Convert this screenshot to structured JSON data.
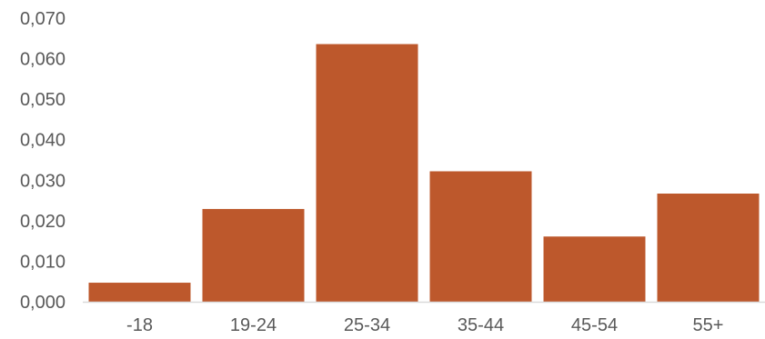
{
  "chart_data": {
    "type": "bar",
    "title": "",
    "xlabel": "",
    "ylabel": "",
    "categories": [
      "-18",
      "19-24",
      "25-34",
      "35-44",
      "45-54",
      "55+"
    ],
    "values": [
      0.0047,
      0.0229,
      0.0636,
      0.0322,
      0.0161,
      0.0267
    ],
    "ylim": [
      0,
      0.07
    ],
    "yticks": [
      0,
      0.01,
      0.02,
      0.03,
      0.04,
      0.05,
      0.06,
      0.07
    ],
    "ytick_labels": [
      "0,000",
      "0,010",
      "0,020",
      "0,030",
      "0,040",
      "0,050",
      "0,060",
      "0,070"
    ],
    "grid": false,
    "legend": "none",
    "colors": {
      "bar": "#BD582C",
      "axis": "#D9D9D9",
      "text": "#595959"
    }
  }
}
